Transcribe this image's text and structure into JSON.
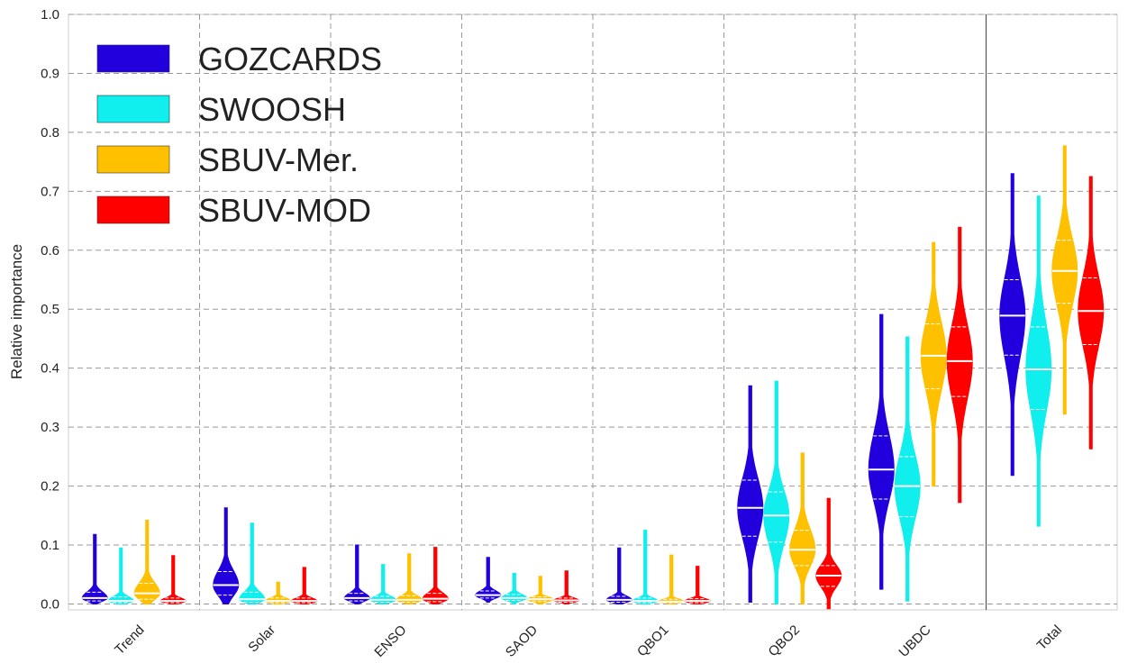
{
  "chart_data": {
    "type": "violin",
    "y_label": "Relative importance",
    "categories": [
      "Trend",
      "Solar",
      "ENSO",
      "SAOD",
      "QBO1",
      "QBO2",
      "UBDC",
      "Total"
    ],
    "ylim": [
      -0.01,
      1.0
    ],
    "yticks": [
      {
        "value": 0,
        "label": "0.0"
      },
      {
        "value": 0.1,
        "label": "0.1"
      },
      {
        "value": 0.2,
        "label": "0.2"
      },
      {
        "value": 0.3,
        "label": "0.3"
      },
      {
        "value": 0.4,
        "label": "0.4"
      },
      {
        "value": 0.5,
        "label": "0.5"
      },
      {
        "value": 0.6,
        "label": "0.6"
      },
      {
        "value": 0.7,
        "label": "0.7"
      },
      {
        "value": 0.8,
        "label": "0.8"
      },
      {
        "value": 0.9,
        "label": "0.9"
      },
      {
        "value": 1.0,
        "label": "1.0"
      }
    ],
    "grid": true,
    "legend": "upper left",
    "series": [
      {
        "name": "GOZCARDS",
        "color": "#2200dd",
        "min": [
          0,
          0,
          0,
          0.003,
          0,
          0.003,
          0.025,
          0.218
        ],
        "q1": [
          0.005,
          0.015,
          0.005,
          0.01,
          0.003,
          0.115,
          0.178,
          0.422
        ],
        "median": [
          0.01,
          0.032,
          0.01,
          0.015,
          0.007,
          0.163,
          0.228,
          0.489
        ],
        "q3": [
          0.02,
          0.055,
          0.018,
          0.022,
          0.013,
          0.21,
          0.285,
          0.55
        ],
        "max": [
          0.118,
          0.163,
          0.1,
          0.079,
          0.095,
          0.37,
          0.491,
          0.73
        ]
      },
      {
        "name": "SWOOSH",
        "color": "#11eeee",
        "min": [
          0,
          0,
          0,
          0,
          0,
          0,
          0.005,
          0.132
        ],
        "q1": [
          0.002,
          0.003,
          0.003,
          0.006,
          0.002,
          0.105,
          0.148,
          0.33
        ],
        "median": [
          0.005,
          0.008,
          0.007,
          0.01,
          0.005,
          0.15,
          0.2,
          0.398
        ],
        "q3": [
          0.012,
          0.02,
          0.013,
          0.016,
          0.01,
          0.19,
          0.25,
          0.47
        ],
        "max": [
          0.095,
          0.137,
          0.067,
          0.052,
          0.125,
          0.378,
          0.453,
          0.692
        ]
      },
      {
        "name": "SBUV-Mer.",
        "color": "#ffc000",
        "min": [
          0,
          0,
          0,
          0,
          0,
          0,
          0.2,
          0.322
        ],
        "q1": [
          0.008,
          0.002,
          0.003,
          0.004,
          0.002,
          0.065,
          0.365,
          0.51
        ],
        "median": [
          0.018,
          0.005,
          0.007,
          0.008,
          0.004,
          0.092,
          0.421,
          0.565
        ],
        "q3": [
          0.035,
          0.01,
          0.014,
          0.012,
          0.008,
          0.125,
          0.475,
          0.617
        ],
        "max": [
          0.142,
          0.037,
          0.085,
          0.047,
          0.083,
          0.256,
          0.613,
          0.777
        ]
      },
      {
        "name": "SBUV-MOD",
        "color": "#ff0000",
        "min": [
          0,
          0,
          0,
          0,
          0,
          -0.008,
          0.172,
          0.263
        ],
        "q1": [
          0.002,
          0.002,
          0.004,
          0.003,
          0.002,
          0.03,
          0.352,
          0.44
        ],
        "median": [
          0.005,
          0.005,
          0.009,
          0.006,
          0.005,
          0.048,
          0.412,
          0.497
        ],
        "q3": [
          0.01,
          0.01,
          0.018,
          0.01,
          0.009,
          0.065,
          0.47,
          0.553
        ],
        "max": [
          0.082,
          0.062,
          0.096,
          0.056,
          0.064,
          0.179,
          0.639,
          0.725
        ]
      }
    ]
  }
}
